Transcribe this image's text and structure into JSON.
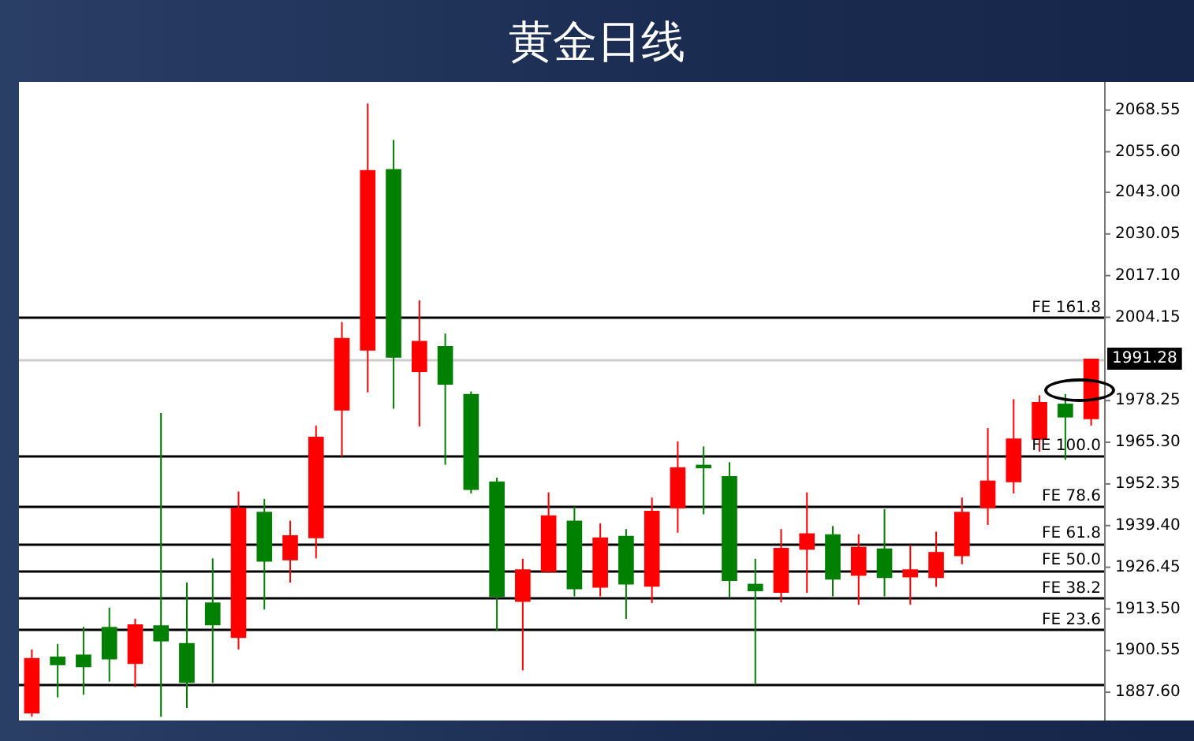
{
  "chart_data": {
    "type": "candlestick",
    "title": "黄金日线",
    "categories": [
      null,
      null,
      null,
      null,
      null,
      null,
      null,
      null,
      null,
      null,
      null,
      null,
      null,
      null,
      null,
      null,
      null,
      null,
      null,
      null,
      null,
      null,
      null,
      null,
      null,
      null,
      null,
      null,
      null,
      null,
      null,
      null,
      null,
      null,
      null,
      null,
      null,
      null,
      null,
      null,
      null,
      null
    ],
    "ohlc": [
      [
        1881,
        1900.9,
        1880,
        1898.2
      ],
      [
        1898.7,
        1902.6,
        1886.0,
        1896.0
      ],
      [
        1899.3,
        1907.9,
        1886.8,
        1895.4
      ],
      [
        1907.9,
        1913.9,
        1890.9,
        1897.8
      ],
      [
        1896.4,
        1910.4,
        1889.2,
        1908.7
      ],
      [
        1908.4,
        1974.4,
        1880,
        1903.4
      ],
      [
        1902.9,
        1921.7,
        1882.7,
        1890.5
      ],
      [
        1915.5,
        1929.2,
        1890.5,
        1908.4
      ],
      [
        1904.5,
        1950.0,
        1900.9,
        1945.0
      ],
      [
        1943.7,
        1947.7,
        1913.3,
        1928.2
      ],
      [
        1928.6,
        1940.9,
        1921.7,
        1936.4
      ],
      [
        1935.5,
        1970.5,
        1929.2,
        1967.0
      ],
      [
        1975.2,
        2002.7,
        1960.8,
        1997.7
      ],
      [
        1993.8,
        2070.6,
        1980.8,
        2049.9
      ],
      [
        2050.2,
        2059.3,
        1975.7,
        1991.6
      ],
      [
        1987.1,
        2009.4,
        1970.2,
        1996.8
      ],
      [
        1995.2,
        1999.1,
        1958.3,
        1983.2
      ],
      [
        1980.3,
        1981.1,
        1949.4,
        1950.5
      ],
      [
        1953.1,
        1954.3,
        1906.6,
        1917.2
      ],
      [
        1915.7,
        1929.1,
        1894.4,
        1925.8
      ],
      [
        1925.0,
        1949.7,
        1924.7,
        1942.6
      ],
      [
        1940.9,
        1945.3,
        1917.4,
        1919.6
      ],
      [
        1920.1,
        1940.1,
        1917.4,
        1935.7
      ],
      [
        1936.2,
        1938.3,
        1910.4,
        1921.1
      ],
      [
        1920.4,
        1948.1,
        1915.3,
        1944.0
      ],
      [
        1944.8,
        1965.6,
        1937.2,
        1957.5
      ],
      [
        1958.3,
        1964.0,
        1942.9,
        1957.2
      ],
      [
        1954.8,
        1959.1,
        1916.9,
        1922.2
      ],
      [
        1921.3,
        1929.1,
        1890.0,
        1919.0
      ],
      [
        1918.5,
        1938.3,
        1915.5,
        1932.5
      ],
      [
        1931.9,
        1949.7,
        1918.5,
        1937.0
      ],
      [
        1936.7,
        1939.3,
        1917.4,
        1922.6
      ],
      [
        1923.8,
        1936.7,
        1914.8,
        1932.8
      ],
      [
        1932.3,
        1944.5,
        1917.4,
        1923.1
      ],
      [
        1923.3,
        1933.4,
        1914.8,
        1925.8
      ],
      [
        1923.1,
        1937.5,
        1920.4,
        1931.2
      ],
      [
        1929.9,
        1948.1,
        1927.4,
        1943.7
      ],
      [
        1944.8,
        1969.7,
        1939.6,
        1953.4
      ],
      [
        1952.9,
        1978.7,
        1949.4,
        1966.5
      ],
      [
        1966.1,
        1979.9,
        1962.4,
        1977.8
      ],
      [
        1977.3,
        1980.3,
        1959.9,
        1973.0
      ],
      [
        1972.5,
        1991.28,
        1970.5,
        1991.28
      ]
    ],
    "colors": [
      "#ff0000",
      "#008000",
      "#008000",
      "#008000",
      "#ff0000",
      "#008000",
      "#008000",
      "#008000",
      "#ff0000",
      "#008000",
      "#ff0000",
      "#ff0000",
      "#ff0000",
      "#ff0000",
      "#008000",
      "#ff0000",
      "#008000",
      "#008000",
      "#008000",
      "#ff0000",
      "#ff0000",
      "#008000",
      "#ff0000",
      "#008000",
      "#ff0000",
      "#ff0000",
      "#008000",
      "#008000",
      "#008000",
      "#ff0000",
      "#ff0000",
      "#008000",
      "#ff0000",
      "#008000",
      "#ff0000",
      "#ff0000",
      "#ff0000",
      "#ff0000",
      "#ff0000",
      "#ff0000",
      "#008000",
      "#ff0000"
    ],
    "ylim": [
      1879.3,
      2076.8
    ],
    "yticks": [
      2068.55,
      {
        "value": 2055.6,
        "label": "2055.60"
      },
      {
        "value": 2043,
        "label": "2043.00"
      },
      2030.05,
      {
        "value": 2017.1,
        "label": "2017.10"
      },
      2004.15,
      1978.25,
      {
        "value": 1965.3,
        "label": "1965.30"
      },
      1952.35,
      {
        "value": 1939.4,
        "label": "1939.40"
      },
      1926.45,
      {
        "value": 1913.5,
        "label": "1913.50"
      },
      1900.55,
      {
        "value": 1887.6,
        "label": "1887.60"
      }
    ],
    "ref_lines": [
      {
        "axis": "y",
        "value": 2004.1,
        "label": "FE 161.8",
        "color": "#000000"
      },
      {
        "axis": "y",
        "value": 1961.2,
        "label": "FE 100.0",
        "color": "#000000"
      },
      {
        "axis": "y",
        "value": 1945.6,
        "label": "FE 78.6",
        "color": "#000000"
      },
      {
        "axis": "y",
        "value": 1933.9,
        "label": "FE 61.8",
        "color": "#000000"
      },
      {
        "axis": "y",
        "value": 1925.6,
        "label": "FE 50.0",
        "color": "#000000"
      },
      {
        "axis": "y",
        "value": 1916.9,
        "label": "FE 38.2",
        "color": "#000000"
      },
      {
        "axis": "y",
        "value": 1907.1,
        "label": "FE 23.6",
        "color": "#000000"
      },
      {
        "axis": "y",
        "value": 1890.0,
        "label": null,
        "color": "#000000"
      },
      {
        "axis": "y",
        "value": 1991.28,
        "label": "1991.28",
        "color": "#cccccc"
      }
    ],
    "tick_labels": "y",
    "grid": false,
    "legend": false
  }
}
